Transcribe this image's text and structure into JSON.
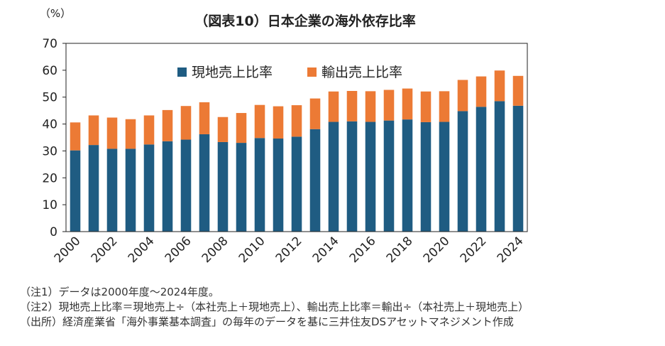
{
  "chart_data": {
    "type": "bar",
    "stacked": true,
    "title": "（図表10）日本企業の海外依存比率",
    "ylabel": "（%）",
    "xlabel": "",
    "ylim": [
      0,
      70
    ],
    "yticks": [
      0,
      10,
      20,
      30,
      40,
      50,
      60,
      70
    ],
    "xtick_labels": [
      "2000",
      "2002",
      "2004",
      "2006",
      "2008",
      "2010",
      "2012",
      "2014",
      "2016",
      "2018",
      "2020",
      "2022",
      "2024"
    ],
    "categories": [
      "2000",
      "2001",
      "2002",
      "2003",
      "2004",
      "2005",
      "2006",
      "2007",
      "2008",
      "2009",
      "2010",
      "2011",
      "2012",
      "2013",
      "2014",
      "2015",
      "2016",
      "2017",
      "2018",
      "2019",
      "2020",
      "2021",
      "2022",
      "2023",
      "2024"
    ],
    "legend_position": "top-center",
    "grid": false,
    "series": [
      {
        "name": "現地売上比率",
        "color": "#1f5c82",
        "values": [
          30.2,
          32.2,
          30.8,
          30.8,
          32.4,
          33.6,
          34.2,
          36.2,
          33.3,
          33.0,
          34.8,
          34.6,
          35.3,
          38.1,
          40.8,
          41.0,
          40.8,
          41.3,
          41.7,
          40.7,
          40.8,
          44.8,
          46.4,
          48.5,
          46.8
        ]
      },
      {
        "name": "輸出売上比率",
        "color": "#ec7a35",
        "values": [
          10.4,
          11.0,
          11.6,
          11.0,
          10.8,
          11.6,
          12.5,
          11.9,
          9.3,
          11.1,
          12.3,
          12.0,
          11.7,
          11.4,
          11.3,
          11.3,
          11.4,
          11.4,
          11.5,
          11.4,
          11.4,
          11.6,
          11.3,
          11.4,
          11.1
        ]
      }
    ]
  },
  "notes": [
    "（注1）データは2000年度～2024年度。",
    "（注2）現地売上比率＝現地売上÷（本社売上＋現地売上）、輸出売上比率＝輸出÷（本社売上＋現地売上）",
    "（出所）経済産業省「海外事業基本調査」の毎年のデータを基に三井住友DSアセットマネジメント作成"
  ]
}
